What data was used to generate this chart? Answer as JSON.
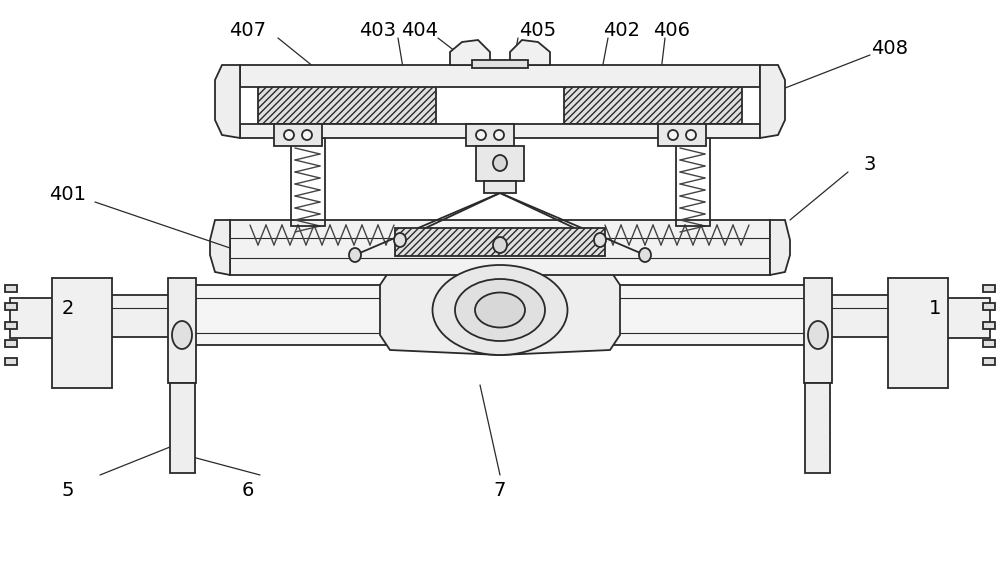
{
  "background_color": "#ffffff",
  "lc": "#2a2a2a",
  "fig_width": 10.0,
  "fig_height": 5.63,
  "dpi": 100
}
